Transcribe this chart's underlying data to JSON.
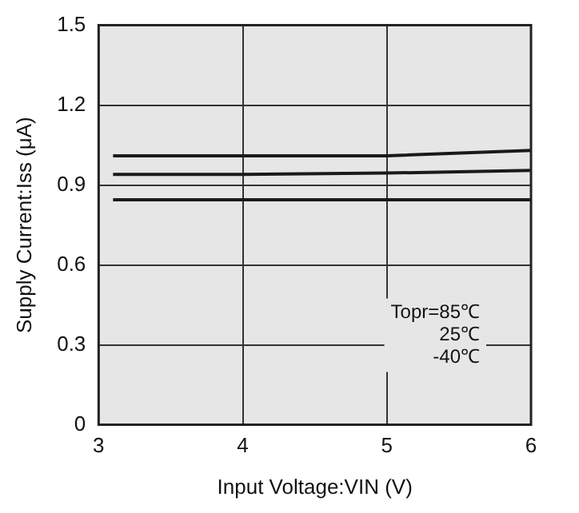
{
  "chart_data": {
    "type": "line",
    "xlabel": "Input Voltage:VIN (V)",
    "ylabel": "Supply Current:Iss (μA)",
    "xlim": [
      3,
      6
    ],
    "xticks": [
      3,
      4,
      5,
      6
    ],
    "ylim": [
      0,
      1.5
    ],
    "yticks": [
      0,
      0.3,
      0.6,
      0.9,
      1.2,
      1.5
    ],
    "grid": true,
    "legend": false,
    "marker": "none",
    "line_style": "solid",
    "series": [
      {
        "color": "#1a1a1a",
        "x": [
          3.1,
          4,
          5,
          6
        ],
        "values": [
          1.01,
          1.01,
          1.01,
          1.03
        ]
      },
      {
        "color": "#1a1a1a",
        "x": [
          3.1,
          4,
          5,
          6
        ],
        "values": [
          0.94,
          0.94,
          0.945,
          0.955
        ]
      },
      {
        "color": "#1a1a1a",
        "x": [
          3.1,
          4,
          5,
          6
        ],
        "values": [
          0.845,
          0.845,
          0.845,
          0.845
        ]
      }
    ],
    "annotations": [
      "Topr=85℃",
      "25℃",
      "-40℃"
    ]
  }
}
